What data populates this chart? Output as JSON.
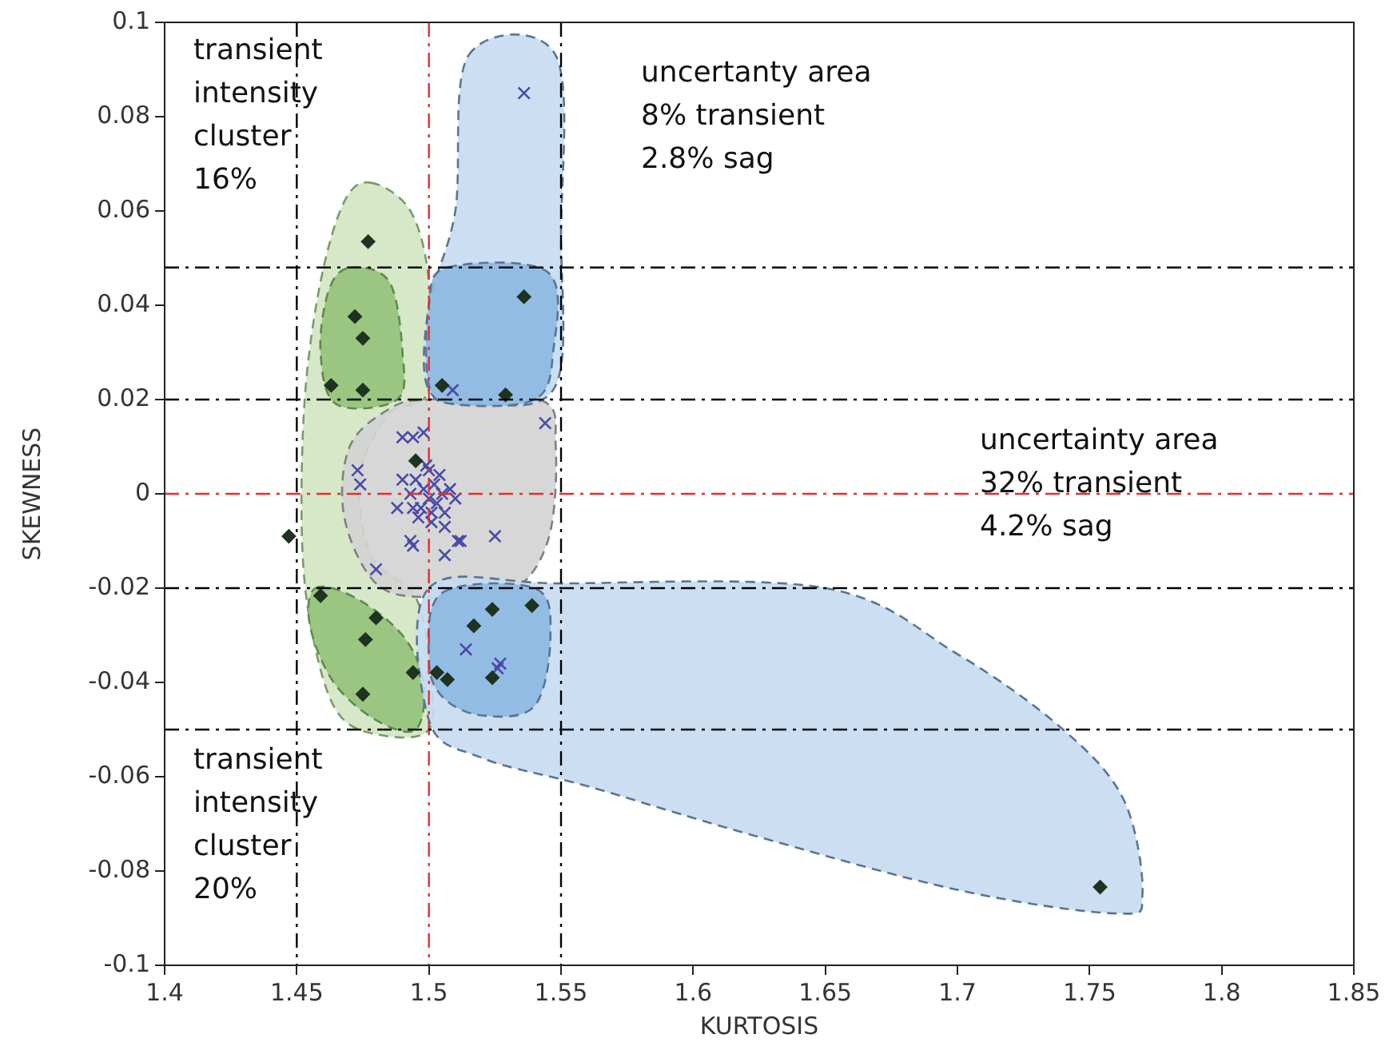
{
  "chart_data": {
    "type": "scatter",
    "xlabel": "KURTOSIS",
    "ylabel": "SKEWNESS",
    "xlim": [
      1.4,
      1.85
    ],
    "xticks": [
      1.4,
      1.45,
      1.5,
      1.55,
      1.6,
      1.65,
      1.7,
      1.75,
      1.8,
      1.85
    ],
    "ylim": [
      -0.1,
      0.1
    ],
    "yticks": [
      -0.1,
      -0.08,
      -0.06,
      -0.04,
      -0.02,
      0,
      0.02,
      0.04,
      0.06,
      0.08,
      0.1
    ],
    "grid": false,
    "legend": false,
    "series": [
      {
        "color": "#1e3320",
        "marker": "diamond",
        "x": [
          1.477,
          1.472,
          1.475,
          1.463,
          1.475,
          1.536,
          1.505,
          1.529,
          1.495,
          1.447,
          1.459,
          1.48,
          1.476,
          1.494,
          1.475,
          1.517,
          1.524,
          1.539,
          1.524,
          1.503,
          1.507,
          1.754
        ],
        "values": [
          0.0535,
          0.0376,
          0.033,
          0.023,
          0.022,
          0.0418,
          0.023,
          0.021,
          0.007,
          -0.009,
          -0.0216,
          -0.0263,
          -0.0309,
          -0.0379,
          -0.0425,
          -0.028,
          -0.0245,
          -0.0237,
          -0.039,
          -0.0379,
          -0.0394,
          -0.0834
        ]
      },
      {
        "color": "#4a4aa8",
        "marker": "cross",
        "x": [
          1.536,
          1.509,
          1.544,
          1.498,
          1.494,
          1.49,
          1.473,
          1.474,
          1.493,
          1.494,
          1.506,
          1.511,
          1.512,
          1.525,
          1.506,
          1.48,
          1.501,
          1.488,
          1.514,
          1.527,
          1.526,
          1.495,
          1.498,
          1.5,
          1.502,
          1.505,
          1.497,
          1.503,
          1.493,
          1.508,
          1.5,
          1.496,
          1.504,
          1.499,
          1.501,
          1.49,
          1.51,
          1.506,
          1.494
        ],
        "values": [
          0.085,
          0.022,
          0.015,
          0.013,
          0.012,
          0.012,
          0.005,
          0.002,
          -0.01,
          -0.011,
          -0.007,
          -0.01,
          -0.01,
          -0.009,
          -0.013,
          -0.016,
          -0.004,
          -0.003,
          -0.033,
          -0.036,
          -0.037,
          0.003,
          0.001,
          -0.001,
          0.002,
          0.0,
          -0.003,
          -0.002,
          0.0,
          0.001,
          0.005,
          -0.005,
          0.004,
          0.006,
          -0.006,
          0.003,
          -0.001,
          -0.004,
          -0.003
        ]
      }
    ],
    "ref_lines": [
      {
        "axis": "x",
        "value": 1.45,
        "color": "#000000",
        "line_style": "dashed"
      },
      {
        "axis": "x",
        "value": 1.5,
        "color": "#e03030",
        "line_style": "dashed"
      },
      {
        "axis": "x",
        "value": 1.55,
        "color": "#000000",
        "line_style": "dashed"
      },
      {
        "axis": "y",
        "value": 0.048,
        "color": "#000000",
        "line_style": "dashed"
      },
      {
        "axis": "y",
        "value": 0.02,
        "color": "#000000",
        "line_style": "dashed"
      },
      {
        "axis": "y",
        "value": 0,
        "color": "#e03030",
        "line_style": "dashed"
      },
      {
        "axis": "y",
        "value": -0.02,
        "color": "#000000",
        "line_style": "dashed"
      },
      {
        "axis": "y",
        "value": -0.05,
        "color": "#000000",
        "line_style": "dashed"
      }
    ],
    "annotations": [
      "transient\nintensity\ncluster\n16%",
      "uncertanty area\n8% transient\n2.8% sag",
      "uncertainty area\n32% transient\n4.2% sag",
      "transient\nintensity\ncluster\n20%"
    ]
  }
}
